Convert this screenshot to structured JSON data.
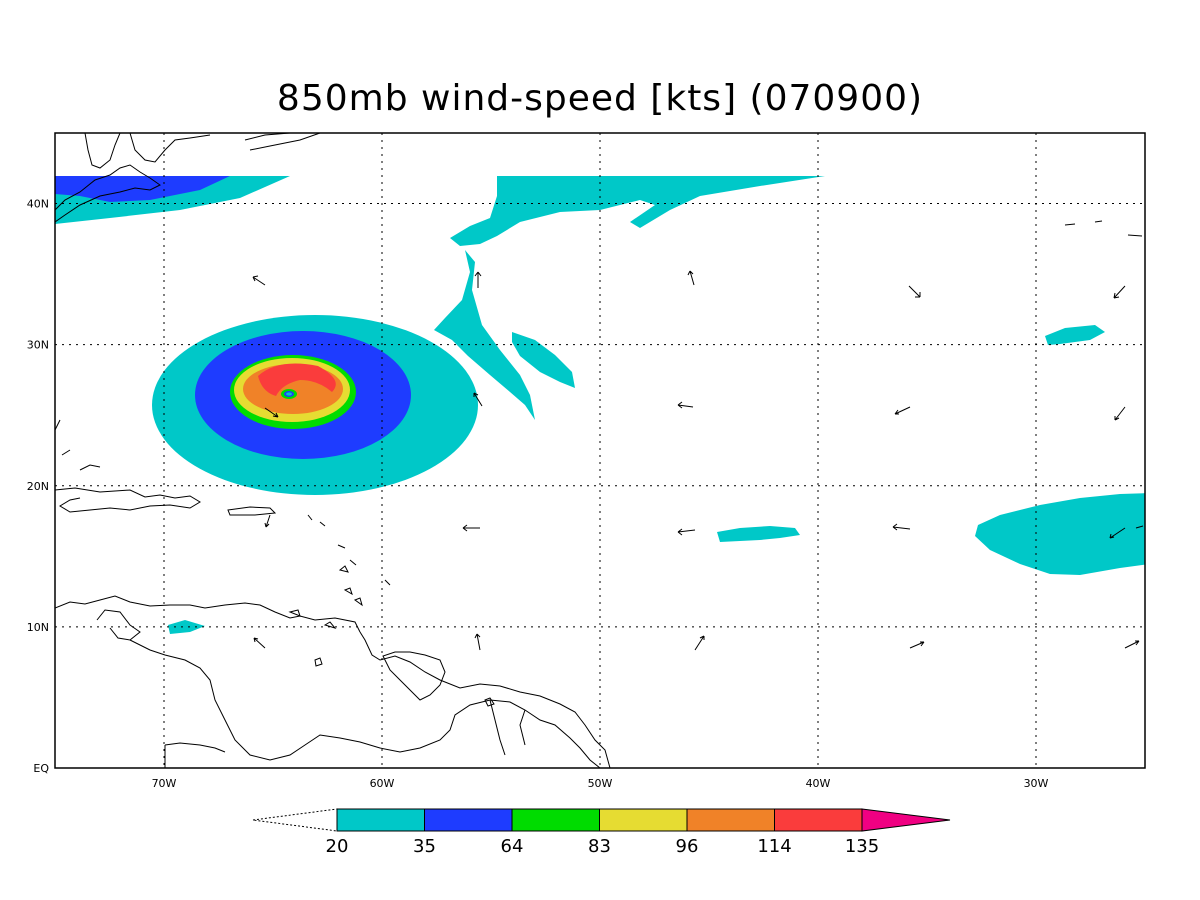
{
  "title": "850mb wind-speed [kts] (070900)",
  "lat_labels": [
    "40N",
    "30N",
    "20N",
    "10N",
    "EQ"
  ],
  "lon_labels": [
    "70W",
    "60W",
    "50W",
    "40W",
    "30W"
  ],
  "colorbar": {
    "labels": [
      "20",
      "35",
      "64",
      "83",
      "96",
      "114",
      "135"
    ],
    "colors": [
      "#00c8c8",
      "#1e3cff",
      "#00dc00",
      "#e6dc32",
      "#f08228",
      "#fa3c3c",
      "#f00082"
    ]
  },
  "chart_data": {
    "type": "contour-map",
    "title": "850mb wind-speed [kts] (070900)",
    "xlim": [
      -75,
      -25
    ],
    "ylim": [
      0,
      45
    ],
    "xticks": [
      -70,
      -60,
      -50,
      -40,
      -30
    ],
    "yticks": [
      40,
      30,
      20,
      10,
      0
    ],
    "grid": true,
    "levels": [
      20,
      35,
      64,
      83,
      96,
      114,
      135
    ],
    "storm_center": {
      "lon": -64.3,
      "lat": 26.6
    }
  }
}
